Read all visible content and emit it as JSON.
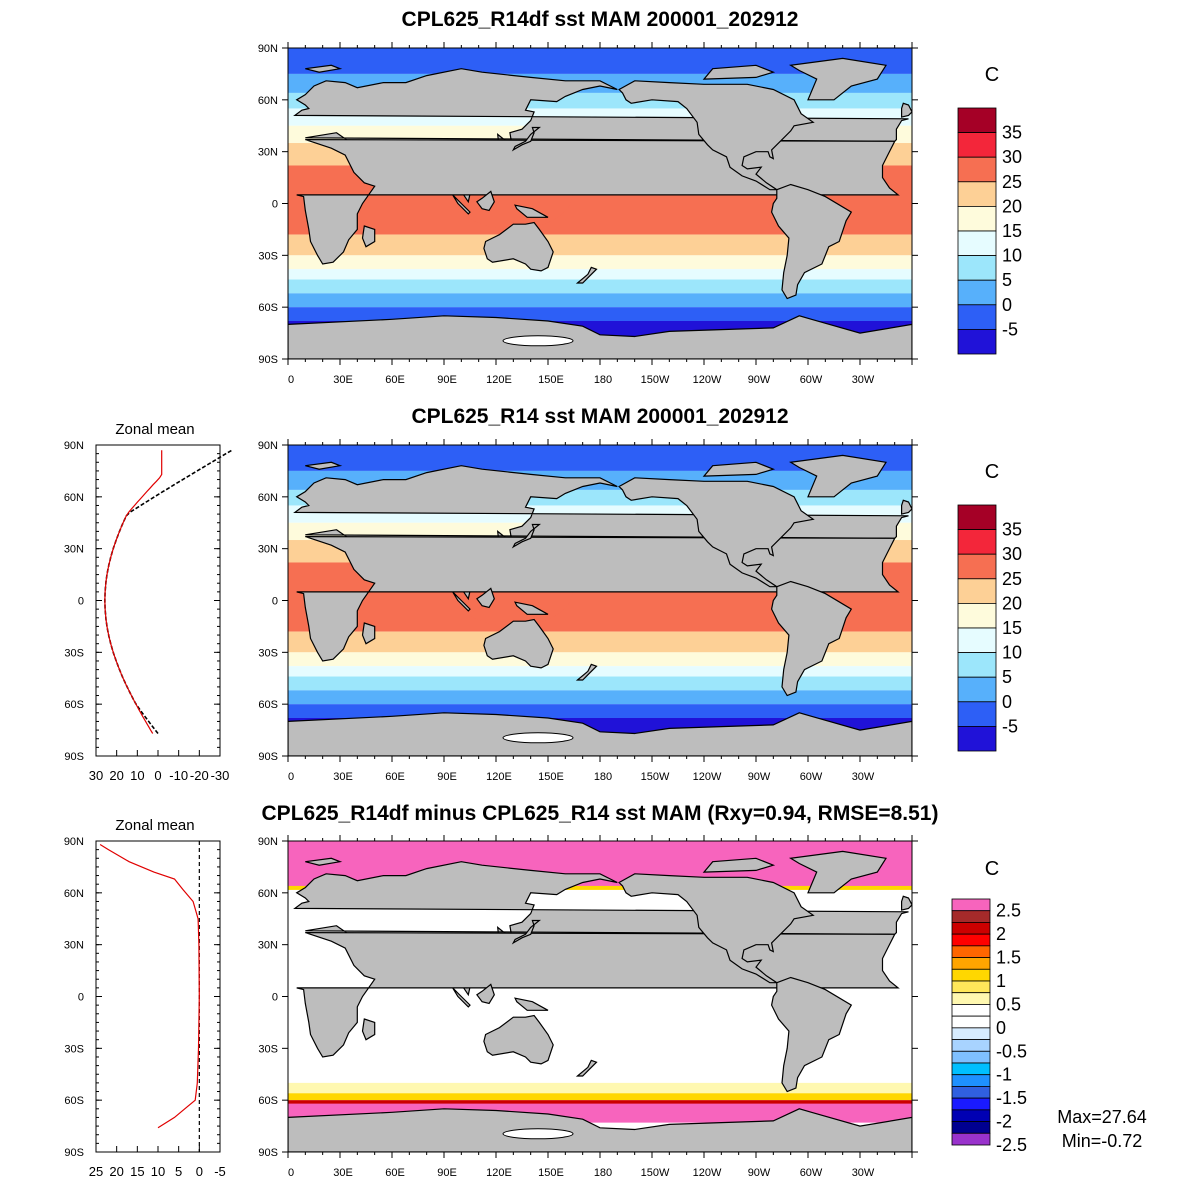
{
  "panels": [
    {
      "title": "CPL625_R14df sst MAM 200001_202912",
      "unit": "C"
    },
    {
      "title": "CPL625_R14 sst MAM 200001_202912",
      "unit": "C"
    },
    {
      "title": "CPL625_R14df minus CPL625_R14 sst MAM (Rxy=0.94, RMSE=8.51)",
      "unit": "C"
    }
  ],
  "map_axes": {
    "lat_labels": [
      "90N",
      "60N",
      "30N",
      "0",
      "30S",
      "60S",
      "90S"
    ],
    "lon_labels": [
      "0",
      "30E",
      "60E",
      "90E",
      "120E",
      "150E",
      "180",
      "150W",
      "120W",
      "90W",
      "60W",
      "30W"
    ]
  },
  "zonal_mean": {
    "title": "Zonal mean",
    "lat_labels": [
      "90N",
      "60N",
      "30N",
      "0",
      "30S",
      "60S",
      "90S"
    ],
    "sst_x_labels": [
      "30",
      "20",
      "10",
      "0",
      "-10",
      "-20",
      "-30"
    ],
    "diff_x_labels": [
      "25",
      "20",
      "15",
      "10",
      "5",
      "0",
      "-5"
    ]
  },
  "colorbar_sst": {
    "labels": [
      "35",
      "30",
      "25",
      "20",
      "15",
      "10",
      "5",
      "0",
      "-5"
    ],
    "colors": [
      "#a50026",
      "#f3263a",
      "#f66f52",
      "#fdd096",
      "#fefbdc",
      "#e6fcff",
      "#9ce6fb",
      "#57b0fb",
      "#2d5ff6",
      "#2012d8"
    ]
  },
  "colorbar_diff": {
    "labels": [
      "2.5",
      "2",
      "1.5",
      "1",
      "0.5",
      "0",
      "-0.5",
      "-1",
      "-1.5",
      "-2",
      "-2.5"
    ],
    "colors": [
      "#f764bd",
      "#a52a2a",
      "#cc0000",
      "#ff0000",
      "#ff6600",
      "#ffa500",
      "#ffd700",
      "#ffe75a",
      "#fff8b0",
      "#ffffff",
      "#ffffff",
      "#d7ecff",
      "#a8d3ff",
      "#7fc0ff",
      "#00bfff",
      "#1e90ff",
      "#3060e0",
      "#1a1aff",
      "#0000b3",
      "#000090",
      "#9932cc"
    ]
  },
  "stats": {
    "max": "Max=27.64",
    "min": "Min=-0.72"
  }
}
